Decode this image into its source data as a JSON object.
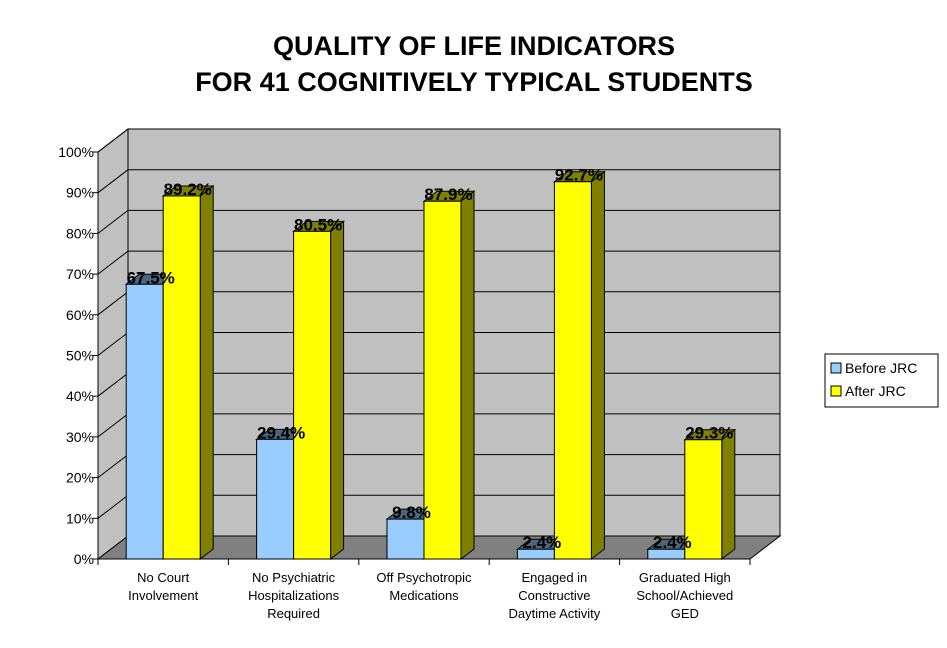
{
  "chart_data": {
    "type": "bar",
    "title_lines": [
      "QUALITY OF LIFE INDICATORS",
      "FOR 41 COGNITIVELY TYPICAL STUDENTS"
    ],
    "categories": [
      [
        "No Court",
        "Involvement"
      ],
      [
        "No Psychiatric",
        "Hospitalizations",
        "Required"
      ],
      [
        "Off Psychotropic",
        "Medications"
      ],
      [
        "Engaged in",
        "Constructive",
        "Daytime Activity"
      ],
      [
        "Graduated High",
        "School/Achieved",
        "GED"
      ]
    ],
    "series": [
      {
        "name": "Before JRC",
        "color": "#99ccff",
        "side_color": "#4d6680",
        "values": [
          67.5,
          29.4,
          9.8,
          2.4,
          2.4
        ],
        "labels": [
          "67.5%",
          "29.4%",
          "9.8%",
          "2.4%",
          "2.4%"
        ]
      },
      {
        "name": "After JRC",
        "color": "#ffff00",
        "side_color": "#808000",
        "values": [
          89.2,
          80.5,
          87.9,
          92.7,
          29.3
        ],
        "labels": [
          "89.2%",
          "80.5%",
          "87.9%",
          "92.7%",
          "29.3%"
        ]
      }
    ],
    "y_ticks": [
      "0%",
      "10%",
      "20%",
      "30%",
      "40%",
      "50%",
      "60%",
      "70%",
      "80%",
      "90%",
      "100%"
    ],
    "ylim": [
      0,
      100
    ],
    "xlabel": "",
    "ylabel": "",
    "legend_position": "right",
    "wall_color": "#c0c0c0",
    "floor_color": "#808080"
  }
}
